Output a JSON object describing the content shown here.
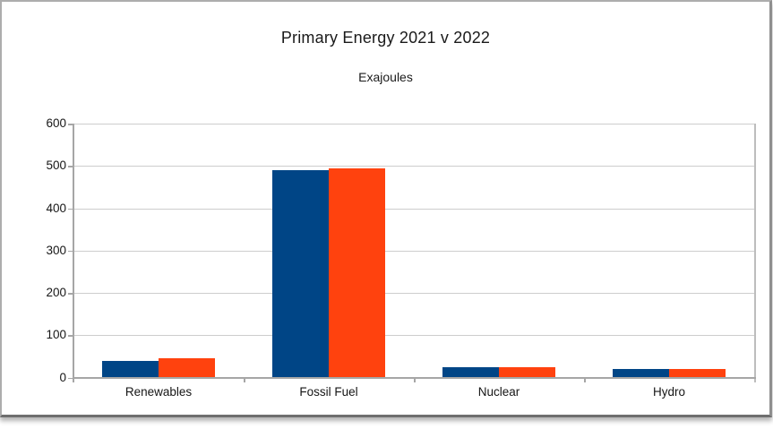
{
  "title": "Primary Energy 2021 v 2022",
  "subtitle": "Exajoules",
  "colors": {
    "series_2021": "#004586",
    "series_2022": "#FF420E",
    "gridline": "#cdcdcd",
    "axis": "#a6a6a6",
    "plot_border": "#bdbdbd",
    "text": "#161616",
    "background": "#ffffff"
  },
  "chart_data": {
    "type": "bar",
    "title": "Primary Energy 2021 v 2022",
    "subtitle": "Exajoules",
    "units": "Exajoules",
    "categories": [
      "Renewables",
      "Fossil Fuel",
      "Nuclear",
      "Hydro"
    ],
    "series": [
      {
        "name": "2021",
        "color": "#004586",
        "values": [
          40,
          490,
          25,
          20
        ]
      },
      {
        "name": "2022",
        "color": "#FF420E",
        "values": [
          45,
          494,
          24,
          21
        ]
      }
    ],
    "xlabel": "",
    "ylabel": "Exajoules",
    "ylim": [
      0,
      600
    ],
    "ytick_interval": 100,
    "yticks": [
      0,
      100,
      200,
      300,
      400,
      500,
      600
    ],
    "grid": true,
    "legend": "none"
  }
}
